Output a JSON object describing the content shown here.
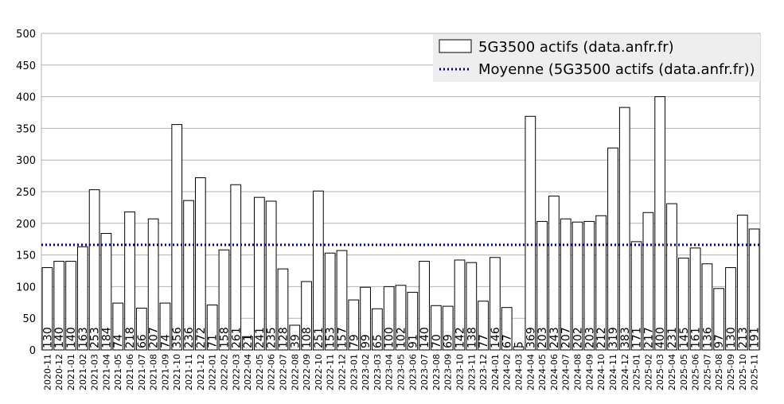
{
  "chart_data": {
    "type": "bar",
    "categories": [
      "2020-11",
      "2020-12",
      "2021-01",
      "2021-02",
      "2021-03",
      "2021-04",
      "2021-05",
      "2021-06",
      "2021-07",
      "2021-08",
      "2021-09",
      "2021-10",
      "2021-11",
      "2021-12",
      "2022-01",
      "2022-02",
      "2022-03",
      "2022-04",
      "2022-05",
      "2022-06",
      "2022-07",
      "2022-08",
      "2022-09",
      "2022-10",
      "2022-11",
      "2022-12",
      "2023-01",
      "2023-02",
      "2023-03",
      "2023-04",
      "2023-05",
      "2023-06",
      "2023-07",
      "2023-08",
      "2023-09",
      "2023-10",
      "2023-11",
      "2023-12",
      "2024-01",
      "2024-02",
      "2024-03",
      "2024-04",
      "2024-05",
      "2024-06",
      "2024-07",
      "2024-08",
      "2024-09",
      "2024-10",
      "2024-11",
      "2024-12",
      "2025-01",
      "2025-02",
      "2025-03",
      "2025-04",
      "2025-05",
      "2025-06",
      "2025-07",
      "2025-08",
      "2025-09",
      "2025-10",
      "2025-11"
    ],
    "series": [
      {
        "name": "5G3500 actifs (data.anfr.fr)",
        "values": [
          130,
          140,
          140,
          163,
          253,
          184,
          74,
          218,
          66,
          207,
          74,
          356,
          236,
          272,
          71,
          158,
          261,
          21,
          241,
          235,
          128,
          39,
          108,
          251,
          153,
          157,
          79,
          99,
          65,
          100,
          102,
          91,
          140,
          70,
          69,
          142,
          138,
          77,
          146,
          67,
          5,
          369,
          203,
          243,
          207,
          202,
          203,
          212,
          319,
          383,
          171,
          217,
          400,
          231,
          145,
          161,
          136,
          97,
          130,
          213,
          191
        ]
      }
    ],
    "average": {
      "name": "Moyenne (5G3500 actifs (data.anfr.fr))",
      "value": 166
    },
    "ylim": [
      0,
      500
    ],
    "yticks": [
      0,
      50,
      100,
      150,
      200,
      250,
      300,
      350,
      400,
      450,
      500
    ],
    "grid": true,
    "legend_position": "top-right",
    "colors": {
      "bar_fill": "#ffffff",
      "bar_stroke": "#000000",
      "average_line": "#000080",
      "grid": "#b3b3b3",
      "legend_bg": "#eeeeee"
    }
  }
}
